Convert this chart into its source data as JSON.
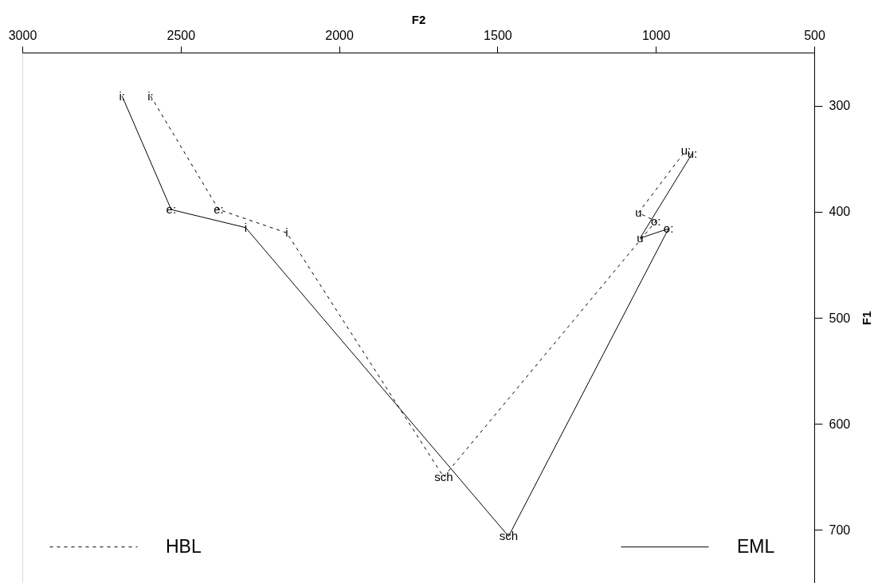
{
  "chart_data": {
    "type": "line",
    "xlabel": "F2",
    "ylabel": "F1",
    "xlim": [
      3000,
      500
    ],
    "xticks": [
      3000,
      2500,
      2000,
      1500,
      1000,
      500
    ],
    "ylim": [
      750,
      250
    ],
    "yticks": [
      300,
      400,
      500,
      600,
      700
    ],
    "legend": "bottom",
    "marker": "none",
    "series": [
      {
        "name": "HBL",
        "color": "#000000",
        "line_style": "dashed",
        "x": [
          2595,
          2380,
          2165,
          1670,
          1000,
          1055,
          905
        ],
        "values": [
          291,
          398,
          420,
          650,
          409,
          401,
          342
        ]
      },
      {
        "name": "EML",
        "color": "#000000",
        "line_style": "solid",
        "x": [
          2685,
          2530,
          2295,
          1465,
          960,
          1050,
          885
        ],
        "values": [
          291,
          398,
          415,
          706,
          416,
          425,
          345
        ]
      }
    ],
    "annotations": [
      {
        "text": "i:",
        "x": 2595,
        "y": 291
      },
      {
        "text": "e:",
        "x": 2380,
        "y": 398
      },
      {
        "text": "i",
        "x": 2165,
        "y": 420
      },
      {
        "text": "sch",
        "x": 1670,
        "y": 650
      },
      {
        "text": "o:",
        "x": 1000,
        "y": 409
      },
      {
        "text": "u",
        "x": 1055,
        "y": 401
      },
      {
        "text": "u:",
        "x": 905,
        "y": 342
      },
      {
        "text": "i:",
        "x": 2685,
        "y": 291
      },
      {
        "text": "e:",
        "x": 2530,
        "y": 398
      },
      {
        "text": "i",
        "x": 2295,
        "y": 415
      },
      {
        "text": "sch",
        "x": 1465,
        "y": 706
      },
      {
        "text": "o:",
        "x": 960,
        "y": 416
      },
      {
        "text": "u",
        "x": 1050,
        "y": 425
      },
      {
        "text": "u:",
        "x": 885,
        "y": 345
      }
    ]
  }
}
